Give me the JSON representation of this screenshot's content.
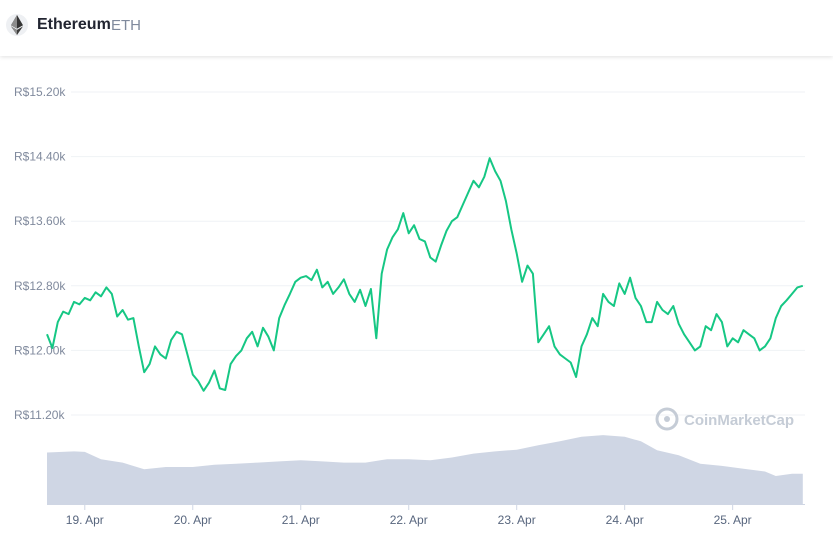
{
  "header": {
    "coin_name": "Ethereum",
    "coin_symbol": "ETH",
    "logo_icon": "ethereum-diamond-icon"
  },
  "watermark": {
    "text": "CoinMarketCap",
    "icon": "coinmarketcap-logo-icon"
  },
  "colors": {
    "line": "#16c784",
    "volume": "#cfd6e4",
    "grid": "#eff2f5"
  },
  "chart_data": {
    "type": "line",
    "title": "",
    "xlabel": "",
    "ylabel": "",
    "x_tick_labels": [
      "19. Apr",
      "20. Apr",
      "21. Apr",
      "22. Apr",
      "23. Apr",
      "24. Apr",
      "25. Apr"
    ],
    "x_ticks_day": [
      19,
      20,
      21,
      22,
      23,
      24,
      25
    ],
    "xlim_day": [
      18.65,
      25.67
    ],
    "y_tick_labels": [
      "R$11.20k",
      "R$12.00k",
      "R$12.80k",
      "R$13.60k",
      "R$14.40k",
      "R$15.20k"
    ],
    "y_ticks": [
      11200,
      12000,
      12800,
      13600,
      14400,
      15200
    ],
    "ylim": [
      11200,
      15200
    ],
    "grid": true,
    "series": [
      {
        "values_day_price": [
          [
            18.65,
            12200
          ],
          [
            18.7,
            12030
          ],
          [
            18.75,
            12350
          ],
          [
            18.8,
            12480
          ],
          [
            18.85,
            12450
          ],
          [
            18.9,
            12600
          ],
          [
            18.95,
            12570
          ],
          [
            19.0,
            12650
          ],
          [
            19.05,
            12620
          ],
          [
            19.1,
            12720
          ],
          [
            19.15,
            12670
          ],
          [
            19.2,
            12780
          ],
          [
            19.25,
            12700
          ],
          [
            19.3,
            12420
          ],
          [
            19.35,
            12500
          ],
          [
            19.4,
            12380
          ],
          [
            19.45,
            12400
          ],
          [
            19.5,
            12050
          ],
          [
            19.55,
            11730
          ],
          [
            19.6,
            11830
          ],
          [
            19.65,
            12050
          ],
          [
            19.7,
            11950
          ],
          [
            19.75,
            11900
          ],
          [
            19.8,
            12130
          ],
          [
            19.85,
            12230
          ],
          [
            19.9,
            12200
          ],
          [
            19.95,
            11950
          ],
          [
            20.0,
            11700
          ],
          [
            20.05,
            11620
          ],
          [
            20.1,
            11500
          ],
          [
            20.15,
            11600
          ],
          [
            20.2,
            11750
          ],
          [
            20.25,
            11530
          ],
          [
            20.3,
            11510
          ],
          [
            20.35,
            11830
          ],
          [
            20.4,
            11930
          ],
          [
            20.45,
            12000
          ],
          [
            20.5,
            12150
          ],
          [
            20.55,
            12230
          ],
          [
            20.6,
            12050
          ],
          [
            20.65,
            12280
          ],
          [
            20.7,
            12170
          ],
          [
            20.75,
            12000
          ],
          [
            20.8,
            12400
          ],
          [
            20.85,
            12560
          ],
          [
            20.9,
            12700
          ],
          [
            20.95,
            12850
          ],
          [
            21.0,
            12900
          ],
          [
            21.05,
            12920
          ],
          [
            21.1,
            12870
          ],
          [
            21.15,
            13000
          ],
          [
            21.2,
            12780
          ],
          [
            21.25,
            12850
          ],
          [
            21.3,
            12700
          ],
          [
            21.35,
            12780
          ],
          [
            21.4,
            12880
          ],
          [
            21.45,
            12700
          ],
          [
            21.5,
            12600
          ],
          [
            21.55,
            12750
          ],
          [
            21.6,
            12550
          ],
          [
            21.65,
            12760
          ],
          [
            21.7,
            12150
          ],
          [
            21.75,
            12950
          ],
          [
            21.8,
            13250
          ],
          [
            21.85,
            13400
          ],
          [
            21.9,
            13500
          ],
          [
            21.95,
            13700
          ],
          [
            22.0,
            13450
          ],
          [
            22.05,
            13550
          ],
          [
            22.1,
            13380
          ],
          [
            22.15,
            13350
          ],
          [
            22.2,
            13150
          ],
          [
            22.25,
            13100
          ],
          [
            22.3,
            13300
          ],
          [
            22.35,
            13480
          ],
          [
            22.4,
            13600
          ],
          [
            22.45,
            13650
          ],
          [
            22.5,
            13800
          ],
          [
            22.55,
            13950
          ],
          [
            22.6,
            14100
          ],
          [
            22.65,
            14020
          ],
          [
            22.7,
            14150
          ],
          [
            22.75,
            14380
          ],
          [
            22.8,
            14220
          ],
          [
            22.85,
            14100
          ],
          [
            22.9,
            13850
          ],
          [
            22.95,
            13500
          ],
          [
            23.0,
            13200
          ],
          [
            23.05,
            12850
          ],
          [
            23.1,
            13050
          ],
          [
            23.15,
            12950
          ],
          [
            23.2,
            12100
          ],
          [
            23.25,
            12200
          ],
          [
            23.3,
            12300
          ],
          [
            23.35,
            12050
          ],
          [
            23.4,
            11950
          ],
          [
            23.45,
            11900
          ],
          [
            23.5,
            11850
          ],
          [
            23.55,
            11670
          ],
          [
            23.6,
            12050
          ],
          [
            23.65,
            12200
          ],
          [
            23.7,
            12400
          ],
          [
            23.75,
            12300
          ],
          [
            23.8,
            12700
          ],
          [
            23.85,
            12600
          ],
          [
            23.9,
            12550
          ],
          [
            23.95,
            12830
          ],
          [
            24.0,
            12700
          ],
          [
            24.05,
            12900
          ],
          [
            24.1,
            12650
          ],
          [
            24.15,
            12550
          ],
          [
            24.2,
            12350
          ],
          [
            24.25,
            12350
          ],
          [
            24.3,
            12600
          ],
          [
            24.35,
            12500
          ],
          [
            24.4,
            12450
          ],
          [
            24.45,
            12550
          ],
          [
            24.5,
            12330
          ],
          [
            24.55,
            12200
          ],
          [
            24.6,
            12100
          ],
          [
            24.65,
            12000
          ],
          [
            24.7,
            12050
          ],
          [
            24.75,
            12300
          ],
          [
            24.8,
            12250
          ],
          [
            24.85,
            12450
          ],
          [
            24.9,
            12350
          ],
          [
            24.95,
            12050
          ],
          [
            25.0,
            12150
          ],
          [
            25.05,
            12100
          ],
          [
            25.1,
            12250
          ],
          [
            25.15,
            12200
          ],
          [
            25.2,
            12150
          ],
          [
            25.25,
            12000
          ],
          [
            25.3,
            12050
          ],
          [
            25.35,
            12150
          ],
          [
            25.4,
            12400
          ],
          [
            25.45,
            12550
          ],
          [
            25.5,
            12620
          ],
          [
            25.55,
            12700
          ],
          [
            25.6,
            12780
          ],
          [
            25.65,
            12800
          ]
        ]
      }
    ],
    "volume_profile": {
      "note_unlabeled": true,
      "values_day_relative": [
        [
          18.65,
          0.92
        ],
        [
          18.9,
          0.94
        ],
        [
          19.0,
          0.93
        ],
        [
          19.15,
          0.8
        ],
        [
          19.35,
          0.74
        ],
        [
          19.55,
          0.62
        ],
        [
          19.75,
          0.66
        ],
        [
          20.0,
          0.66
        ],
        [
          20.2,
          0.7
        ],
        [
          20.4,
          0.72
        ],
        [
          20.6,
          0.74
        ],
        [
          20.8,
          0.76
        ],
        [
          21.0,
          0.78
        ],
        [
          21.2,
          0.76
        ],
        [
          21.4,
          0.74
        ],
        [
          21.6,
          0.74
        ],
        [
          21.8,
          0.8
        ],
        [
          22.0,
          0.8
        ],
        [
          22.2,
          0.78
        ],
        [
          22.4,
          0.83
        ],
        [
          22.6,
          0.9
        ],
        [
          22.8,
          0.94
        ],
        [
          23.0,
          0.97
        ],
        [
          23.2,
          1.05
        ],
        [
          23.4,
          1.12
        ],
        [
          23.6,
          1.2
        ],
        [
          23.8,
          1.23
        ],
        [
          24.0,
          1.2
        ],
        [
          24.15,
          1.12
        ],
        [
          24.3,
          0.96
        ],
        [
          24.5,
          0.87
        ],
        [
          24.7,
          0.72
        ],
        [
          24.9,
          0.68
        ],
        [
          25.1,
          0.63
        ],
        [
          25.3,
          0.58
        ],
        [
          25.4,
          0.5
        ],
        [
          25.55,
          0.54
        ],
        [
          25.65,
          0.54
        ]
      ]
    }
  }
}
